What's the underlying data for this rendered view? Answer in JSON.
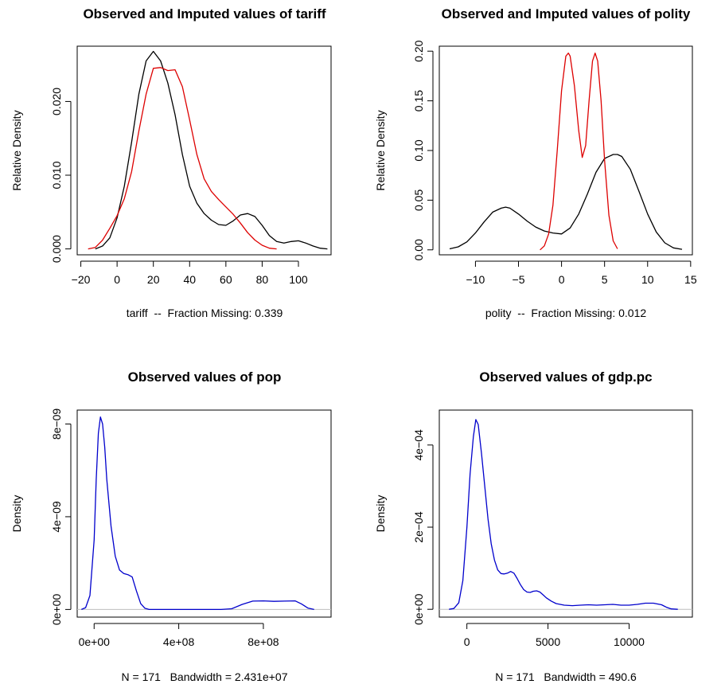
{
  "chart_data": [
    {
      "type": "line",
      "title": "Observed and Imputed values of tariff",
      "xlabel": "tariff  --  Fraction Missing: 0.339",
      "ylabel": "Relative Density",
      "xlim": [
        -22,
        118
      ],
      "ylim": [
        -0.0008,
        0.0275
      ],
      "xticks": [
        -20,
        0,
        20,
        40,
        60,
        80,
        100
      ],
      "xtick_labels": [
        "−20",
        "0",
        "20",
        "40",
        "60",
        "80",
        "100"
      ],
      "yticks": [
        0.0,
        0.01,
        0.02
      ],
      "ytick_labels": [
        "0.000",
        "0.010",
        "0.020"
      ],
      "grid": false,
      "series": [
        {
          "color": "#000000",
          "x": [
            -12,
            -8,
            -4,
            0,
            4,
            8,
            12,
            16,
            20,
            24,
            28,
            32,
            36,
            40,
            44,
            48,
            52,
            56,
            60,
            64,
            68,
            72,
            76,
            80,
            84,
            88,
            92,
            96,
            100,
            104,
            108,
            112,
            116
          ],
          "y": [
            0.0,
            0.0004,
            0.0015,
            0.0042,
            0.0085,
            0.0145,
            0.021,
            0.0255,
            0.0268,
            0.0255,
            0.0225,
            0.0182,
            0.0128,
            0.0085,
            0.0062,
            0.0048,
            0.0039,
            0.0033,
            0.0032,
            0.0038,
            0.0046,
            0.0048,
            0.0044,
            0.0032,
            0.0018,
            0.001,
            0.0008,
            0.001,
            0.0011,
            0.0008,
            0.0004,
            0.0001,
            0.0
          ]
        },
        {
          "color": "#dd0000",
          "x": [
            -16,
            -12,
            -8,
            -4,
            0,
            4,
            8,
            12,
            16,
            20,
            24,
            28,
            32,
            36,
            40,
            44,
            48,
            52,
            56,
            60,
            64,
            68,
            72,
            76,
            80,
            84,
            88
          ],
          "y": [
            0.0,
            0.0002,
            0.0012,
            0.0028,
            0.0045,
            0.0068,
            0.0105,
            0.016,
            0.021,
            0.0245,
            0.0246,
            0.0242,
            0.0243,
            0.022,
            0.0175,
            0.0128,
            0.0095,
            0.0078,
            0.0067,
            0.0057,
            0.0047,
            0.0035,
            0.0022,
            0.0012,
            0.0005,
            0.0001,
            0.0
          ]
        }
      ]
    },
    {
      "type": "line",
      "title": "Observed and Imputed values of polity",
      "xlabel": "polity  --  Fraction Missing: 0.012",
      "ylabel": "Relative Density",
      "xlim": [
        -14.2,
        15.2
      ],
      "ylim": [
        -0.005,
        0.205
      ],
      "xticks": [
        -10,
        -5,
        0,
        5,
        10,
        15
      ],
      "xtick_labels": [
        "−10",
        "−5",
        "0",
        "5",
        "10",
        "15"
      ],
      "yticks": [
        0.0,
        0.05,
        0.1,
        0.15,
        0.2
      ],
      "ytick_labels": [
        "0.00",
        "0.05",
        "0.10",
        "0.15",
        "0.20"
      ],
      "grid": false,
      "series": [
        {
          "color": "#000000",
          "x": [
            -13,
            -12,
            -11,
            -10,
            -9,
            -8,
            -7,
            -6.5,
            -6,
            -5,
            -4,
            -3,
            -2,
            -1,
            0,
            1,
            2,
            3,
            4,
            5,
            6,
            6.5,
            7,
            8,
            9,
            10,
            11,
            12,
            13,
            14
          ],
          "y": [
            0.001,
            0.003,
            0.008,
            0.017,
            0.028,
            0.038,
            0.042,
            0.043,
            0.042,
            0.036,
            0.029,
            0.023,
            0.019,
            0.017,
            0.016,
            0.022,
            0.036,
            0.056,
            0.078,
            0.092,
            0.096,
            0.096,
            0.094,
            0.081,
            0.059,
            0.036,
            0.018,
            0.007,
            0.002,
            0.0005
          ]
        },
        {
          "color": "#dd0000",
          "x": [
            -2.5,
            -2,
            -1.5,
            -1,
            -0.5,
            0,
            0.5,
            0.8,
            1,
            1.5,
            2,
            2.4,
            2.8,
            3.2,
            3.6,
            3.9,
            4.2,
            4.6,
            5,
            5.5,
            6,
            6.5
          ],
          "y": [
            0.0,
            0.004,
            0.016,
            0.045,
            0.1,
            0.16,
            0.195,
            0.198,
            0.195,
            0.165,
            0.12,
            0.093,
            0.105,
            0.15,
            0.19,
            0.198,
            0.19,
            0.15,
            0.09,
            0.035,
            0.009,
            0.001
          ]
        }
      ]
    },
    {
      "type": "line",
      "title": "Observed values of pop",
      "xlabel": "N = 171   Bandwidth = 2.431e+07",
      "ylabel": "Density",
      "xlim": [
        -80000000,
        1120000000
      ],
      "ylim": [
        -3.3e-10,
        8.6e-09
      ],
      "xticks": [
        0,
        400000000,
        800000000
      ],
      "xtick_labels": [
        "0e+00",
        "4e+08",
        "8e+08"
      ],
      "yticks": [
        0,
        4e-09,
        8e-09
      ],
      "ytick_labels": [
        "0e+00",
        "4e−09",
        "8e−09"
      ],
      "grid": false,
      "baseline": true,
      "series": [
        {
          "color": "#0000cc",
          "x": [
            -60000000,
            -40000000,
            -20000000,
            0,
            10000000,
            20000000,
            30000000,
            40000000,
            50000000,
            60000000,
            80000000,
            100000000,
            120000000,
            140000000,
            160000000,
            180000000,
            200000000,
            220000000,
            240000000,
            260000000,
            300000000,
            400000000,
            500000000,
            600000000,
            650000000,
            700000000,
            750000000,
            800000000,
            850000000,
            900000000,
            950000000,
            980000000,
            1010000000,
            1040000000
          ],
          "y": [
            0,
            8e-11,
            6e-10,
            3e-09,
            5.6e-09,
            7.6e-09,
            8.3e-09,
            8e-09,
            7e-09,
            5.6e-09,
            3.6e-09,
            2.3e-09,
            1.7e-09,
            1.55e-09,
            1.5e-09,
            1.4e-09,
            8e-10,
            2.5e-10,
            5e-11,
            0,
            0,
            0,
            0,
            0,
            3e-11,
            2.2e-10,
            3.6e-10,
            3.7e-10,
            3.5e-10,
            3.6e-10,
            3.7e-10,
            2.4e-10,
            6e-11,
            0
          ]
        }
      ]
    },
    {
      "type": "line",
      "title": "Observed values of gdp.pc",
      "xlabel": "N = 171   Bandwidth = 490.6",
      "ylabel": "Density",
      "xlim": [
        -1700,
        13900
      ],
      "ylim": [
        -1.9e-05,
        0.000485
      ],
      "xticks": [
        0,
        5000,
        10000
      ],
      "xtick_labels": [
        "0",
        "5000",
        "10000"
      ],
      "yticks": [
        0,
        0.0002,
        0.0004
      ],
      "ytick_labels": [
        "0e+00",
        "2e−04",
        "4e−04"
      ],
      "grid": false,
      "baseline": true,
      "series": [
        {
          "color": "#0000cc",
          "x": [
            -1100,
            -800,
            -500,
            -250,
            0,
            200,
            400,
            550,
            700,
            900,
            1100,
            1300,
            1500,
            1700,
            1900,
            2100,
            2300,
            2500,
            2700,
            2900,
            3100,
            3300,
            3500,
            3700,
            3900,
            4100,
            4300,
            4500,
            4700,
            4900,
            5200,
            5500,
            6000,
            6500,
            7000,
            7500,
            8000,
            8500,
            9000,
            9500,
            10000,
            10500,
            11000,
            11500,
            12000,
            12300,
            12600,
            13000
          ],
          "y": [
            0,
            2e-06,
            1.6e-05,
            7e-05,
            0.0002,
            0.00033,
            0.00042,
            0.000462,
            0.00045,
            0.00038,
            0.0003,
            0.00022,
            0.00016,
            0.00012,
            9.6e-05,
            8.7e-05,
            8.6e-05,
            8.8e-05,
            9.2e-05,
            8.8e-05,
            7.5e-05,
            6e-05,
            4.8e-05,
            4.2e-05,
            4.1e-05,
            4.4e-05,
            4.5e-05,
            4.2e-05,
            3.5e-05,
            2.8e-05,
            2e-05,
            1.4e-05,
            1e-05,
            9e-06,
            1e-05,
            1.1e-05,
            1e-05,
            1.1e-05,
            1.2e-05,
            1e-05,
            1e-05,
            1.2e-05,
            1.5e-05,
            1.5e-05,
            1.1e-05,
            5e-06,
            1e-06,
            0
          ]
        }
      ]
    }
  ]
}
